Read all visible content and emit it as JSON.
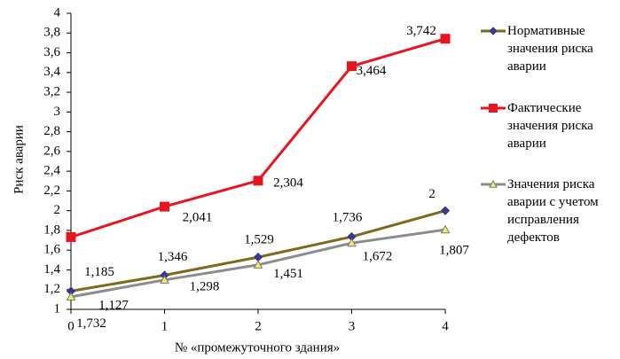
{
  "chart_data": {
    "type": "line",
    "x_label": "№ «промежуточного здания»",
    "y_label": "Риск аварии",
    "x": [
      0,
      1,
      2,
      3,
      4
    ],
    "xlim": [
      0,
      4
    ],
    "xticks": [
      0,
      1,
      2,
      3,
      4
    ],
    "ylim": [
      1,
      4
    ],
    "yticks": [
      1,
      {
        "value": 1.2,
        "label": "1,2"
      },
      {
        "value": 1.4,
        "label": "1,4"
      },
      {
        "value": 1.6,
        "label": "1,6"
      },
      {
        "value": 1.8,
        "label": "1,8"
      },
      2,
      {
        "value": 2.2,
        "label": "2,2"
      },
      {
        "value": 2.4,
        "label": "2,4"
      },
      {
        "value": 2.6,
        "label": "2,6"
      },
      {
        "value": 2.8,
        "label": "2,8"
      },
      3,
      {
        "value": 3.2,
        "label": "3,2"
      },
      {
        "value": 3.4,
        "label": "3,4"
      },
      {
        "value": 3.6,
        "label": "3,6"
      },
      {
        "value": 3.8,
        "label": "3,8"
      },
      4
    ],
    "grid": false,
    "legend": "right",
    "series": [
      {
        "name": "Нормативные значения риска аварии",
        "color": "#7f6a1a",
        "marker": "diamond",
        "marker_color": "#3a3a8a",
        "values": [
          1.185,
          1.346,
          1.529,
          1.736,
          2
        ],
        "value_labels": [
          "1,185",
          "1,346",
          "1,529",
          "1,736",
          "2"
        ]
      },
      {
        "name": "Фактические значения риска аварии",
        "color": "#e8141e",
        "marker": "square",
        "marker_color": "#e8141e",
        "values": [
          1.732,
          2.041,
          2.304,
          3.464,
          3.742
        ],
        "value_labels": [
          "1,732",
          "2,041",
          "2,304",
          "3,464",
          "3,742"
        ]
      },
      {
        "name": "Значения риска аварии с учетом исправления дефектов",
        "color": "#8c8c8c",
        "marker": "triangle",
        "marker_color": "#f0f060",
        "values": [
          1.127,
          1.298,
          1.451,
          1.672,
          1.807
        ],
        "value_labels": [
          "1,127",
          "1,298",
          "1,451",
          "1,672",
          "1,807"
        ]
      }
    ]
  }
}
